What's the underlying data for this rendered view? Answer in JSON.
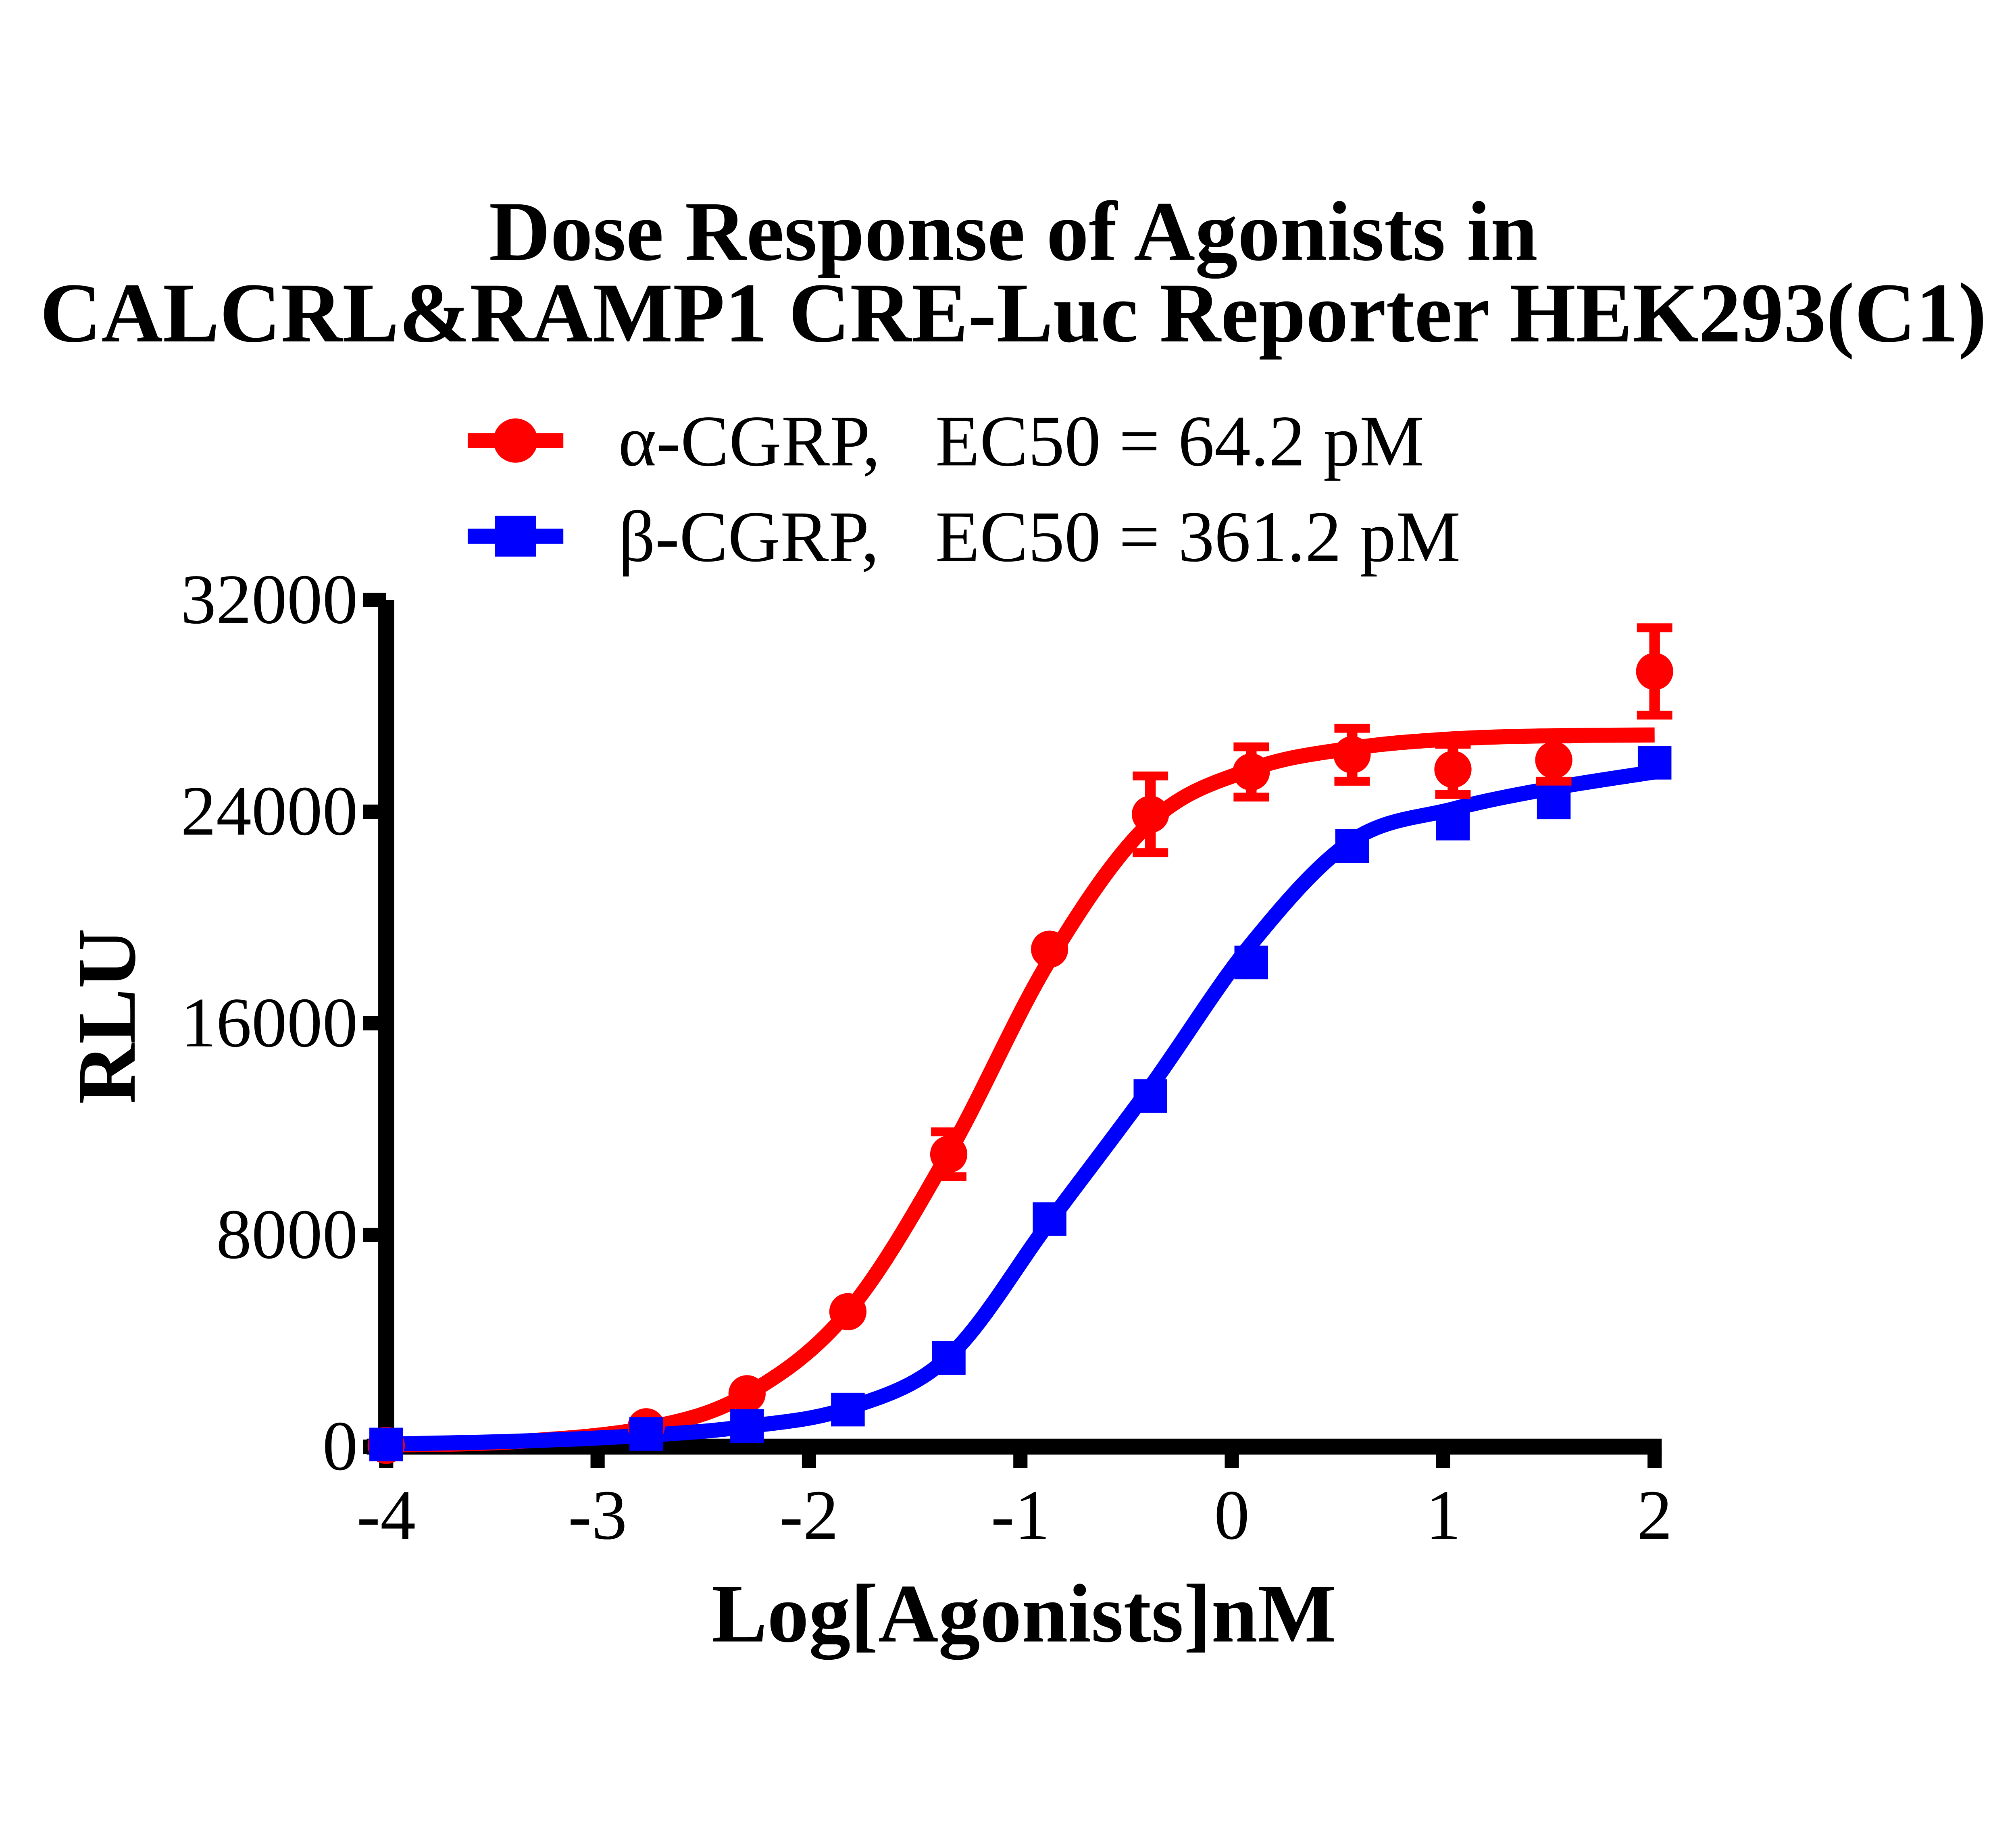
{
  "title": {
    "line1": "Dose Response of Agonists in",
    "line2": "CALCRL&RAMP1 CRE-Luc Reporter HEK293(C1)"
  },
  "legend": {
    "items": [
      {
        "label": "α-CGRP,",
        "ec50": "EC50 = 64.2 pM",
        "color": "#FF0000",
        "marker": "circle"
      },
      {
        "label": "β-CGRP,",
        "ec50": "EC50 = 361.2 pM",
        "color": "#0000FF",
        "marker": "square"
      }
    ]
  },
  "chart_data": {
    "type": "scatter",
    "title": "Dose Response of Agonists in CALCRL&RAMP1 CRE-Luc Reporter HEK293(C1)",
    "xlabel": "Log[Agonists]nM",
    "ylabel": "RLU",
    "xlim": [
      -4,
      2
    ],
    "ylim": [
      0,
      32000
    ],
    "grid": false,
    "legend_position": "top-center",
    "xticks": {
      "values": [
        -4,
        -3,
        -2,
        -1,
        0,
        1,
        2
      ],
      "labels": [
        "-4",
        "-3",
        "-2",
        "-1",
        "0",
        "1",
        "2"
      ]
    },
    "yticks": {
      "values": [
        0,
        8000,
        16000,
        24000,
        32000
      ],
      "labels": [
        "0",
        "8000",
        "16000",
        "24000",
        "32000"
      ]
    },
    "series": [
      {
        "name": "α-CGRP",
        "ec50_label": "EC50 = 64.2 pM",
        "ec50_pM": 64.2,
        "color": "#FF0000",
        "marker": "circle",
        "x": [
          -4,
          -2.77,
          -2.293,
          -1.816,
          -1.339,
          -0.862,
          -0.385,
          0.092,
          0.569,
          1.046,
          1.523,
          2.0
        ],
        "y": [
          50,
          750,
          2000,
          5100,
          11050,
          18800,
          23900,
          25500,
          26150,
          25600,
          25950,
          29300
        ],
        "err": [
          0,
          0,
          0,
          0,
          850,
          0,
          1450,
          950,
          1000,
          950,
          800,
          1650
        ],
        "curve": [
          [
            -4,
            60
          ],
          [
            -3.4,
            180
          ],
          [
            -2.77,
            700
          ],
          [
            -2.293,
            1980
          ],
          [
            -1.816,
            5100
          ],
          [
            -1.339,
            11100
          ],
          [
            -0.862,
            18400
          ],
          [
            -0.385,
            23600
          ],
          [
            0.092,
            25600
          ],
          [
            0.569,
            26400
          ],
          [
            1.046,
            26750
          ],
          [
            1.523,
            26870
          ],
          [
            2.0,
            26900
          ]
        ]
      },
      {
        "name": "β-CGRP",
        "ec50_label": "EC50 = 361.2 pM",
        "ec50_pM": 361.2,
        "color": "#0000FF",
        "marker": "square",
        "x": [
          -4,
          -2.77,
          -2.293,
          -1.816,
          -1.339,
          -0.862,
          -0.385,
          0.092,
          0.569,
          1.046,
          1.523,
          2.0
        ],
        "y": [
          80,
          480,
          780,
          1400,
          3350,
          8600,
          13250,
          18300,
          22700,
          23550,
          24350,
          25850
        ],
        "err": [
          0,
          0,
          0,
          0,
          0,
          0,
          0,
          0,
          0,
          0,
          0,
          0
        ],
        "curve": [
          [
            -4,
            100
          ],
          [
            -3.4,
            200
          ],
          [
            -2.77,
            430
          ],
          [
            -2.293,
            760
          ],
          [
            -1.816,
            1450
          ],
          [
            -1.339,
            3400
          ],
          [
            -0.862,
            8500
          ],
          [
            -0.385,
            13600
          ],
          [
            0.092,
            19000
          ],
          [
            0.569,
            22900
          ],
          [
            1.046,
            24100
          ],
          [
            1.523,
            24900
          ],
          [
            2.0,
            25500
          ]
        ]
      }
    ]
  }
}
